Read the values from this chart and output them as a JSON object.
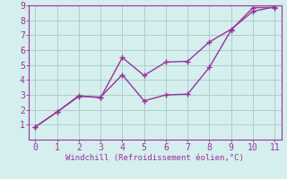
{
  "line1_x": [
    0,
    1,
    2,
    3,
    4,
    5,
    6,
    7,
    8,
    9,
    10,
    11
  ],
  "line1_y": [
    0.85,
    1.85,
    2.9,
    2.85,
    4.35,
    2.6,
    3.0,
    3.05,
    4.85,
    7.35,
    8.85,
    8.85
  ],
  "line2_x": [
    0,
    1,
    2,
    3,
    4,
    5,
    6,
    7,
    8,
    9,
    10,
    11
  ],
  "line2_y": [
    0.85,
    1.85,
    2.95,
    2.8,
    5.5,
    4.3,
    5.2,
    5.25,
    6.55,
    7.4,
    8.6,
    8.9
  ],
  "line_color": "#993399",
  "marker_style": "+",
  "marker_size": 4,
  "marker_edge_width": 1.0,
  "xlim": [
    -0.3,
    11.3
  ],
  "ylim": [
    0,
    9
  ],
  "xticks": [
    0,
    1,
    2,
    3,
    4,
    5,
    6,
    7,
    8,
    9,
    10,
    11
  ],
  "yticks": [
    1,
    2,
    3,
    4,
    5,
    6,
    7,
    8,
    9
  ],
  "xlabel": "Windchill (Refroidissement éolien,°C)",
  "xlabel_color": "#993399",
  "background_color": "#d5eeee",
  "grid_color": "#b0cccc",
  "axis_color": "#993399",
  "tick_color": "#993399",
  "line_width": 1.0,
  "font_size_label": 6.5,
  "font_size_tick": 7
}
